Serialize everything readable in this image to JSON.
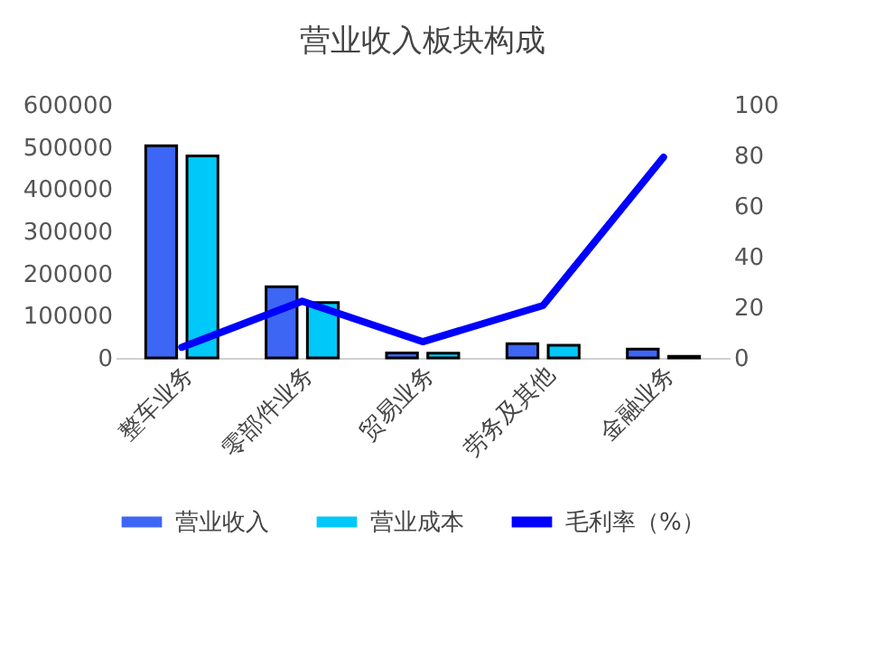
{
  "chart_data": {
    "type": "bar",
    "title": "营业收入板块构成",
    "categories": [
      "整车业务",
      "零部件业务",
      "贸易业务",
      "劳务及其他",
      "金融业务"
    ],
    "series": [
      {
        "name": "营业收入",
        "color": "#3d66f5",
        "values": [
          503000,
          169000,
          12000,
          34000,
          21000
        ]
      },
      {
        "name": "营业成本",
        "color": "#00c8f8",
        "values": [
          479000,
          131000,
          11000,
          30000,
          4000
        ]
      },
      {
        "name": "毛利率（%）",
        "type": "line",
        "axis": "y2",
        "color": "#0000ff",
        "values": [
          4.2,
          22.4,
          6.4,
          20.7,
          79.3
        ]
      }
    ],
    "ylim": [
      0,
      600000
    ],
    "yticks": [
      0,
      100000,
      200000,
      300000,
      400000,
      500000,
      600000
    ],
    "y2lim": [
      0,
      100
    ],
    "y2ticks": [
      0,
      20,
      40,
      60,
      80,
      100
    ],
    "grid": false,
    "legend": "bottom"
  }
}
